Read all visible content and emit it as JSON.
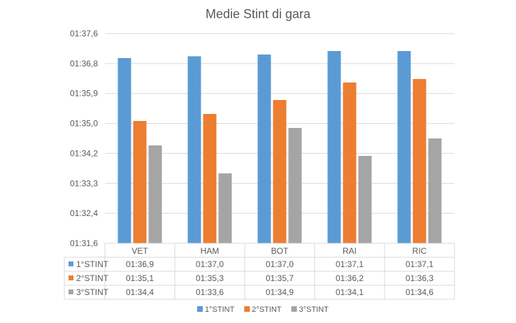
{
  "chart_data": {
    "type": "bar",
    "title": "Medie Stint di gara",
    "categories": [
      "VET",
      "HAM",
      "BOT",
      "RAI",
      "RIC"
    ],
    "y_ticks": [
      "01:31,6",
      "01:32,4",
      "01:33,3",
      "01:34,2",
      "01:35,0",
      "01:35,9",
      "01:36,8",
      "01:37,6"
    ],
    "ylim": [
      91.6,
      97.6
    ],
    "grid": true,
    "legend_position": "bottom",
    "data_table": true,
    "series": [
      {
        "name": "1°STINT",
        "color": "#5B9BD5",
        "values": [
          96.9,
          96.95,
          97.0,
          97.1,
          97.1
        ],
        "labels": [
          "01:36,9",
          "01:37,0",
          "01:37,0",
          "01:37,1",
          "01:37,1"
        ]
      },
      {
        "name": "2°STINT",
        "color": "#ED7D31",
        "values": [
          95.1,
          95.3,
          95.7,
          96.2,
          96.3
        ],
        "labels": [
          "01:35,1",
          "01:35,3",
          "01:35,7",
          "01:36,2",
          "01:36,3"
        ]
      },
      {
        "name": "3°STINT",
        "color": "#A5A5A5",
        "values": [
          94.4,
          93.6,
          94.9,
          94.1,
          94.6
        ],
        "labels": [
          "01:34,4",
          "01:33,6",
          "01:34,9",
          "01:34,1",
          "01:34,6"
        ]
      }
    ]
  }
}
